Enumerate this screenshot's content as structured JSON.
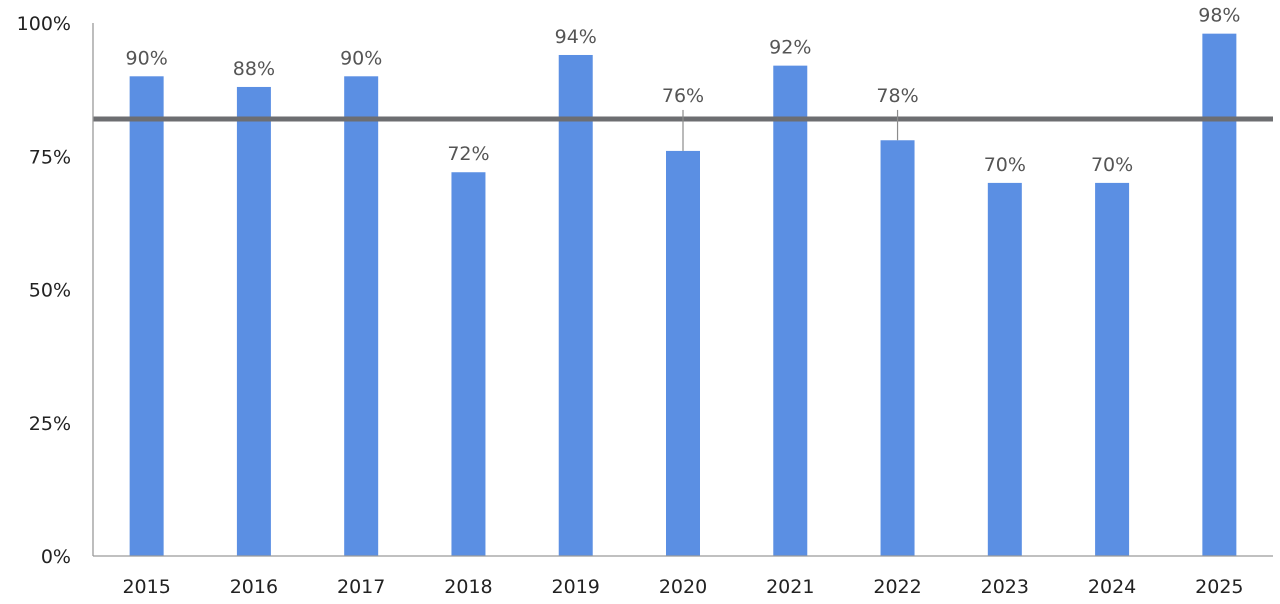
{
  "chart_data": {
    "type": "bar",
    "categories": [
      "2015",
      "2016",
      "2017",
      "2018",
      "2019",
      "2020",
      "2021",
      "2022",
      "2023",
      "2024",
      "2025"
    ],
    "values": [
      90,
      88,
      90,
      72,
      94,
      76,
      92,
      78,
      70,
      70,
      98
    ],
    "value_labels": [
      "90%",
      "88%",
      "90%",
      "72%",
      "94%",
      "76%",
      "92%",
      "78%",
      "70%",
      "70%",
      "98%"
    ],
    "yticks": [
      0,
      25,
      50,
      75,
      100
    ],
    "ytick_labels": [
      "0%",
      "25%",
      "50%",
      "75%",
      "100%"
    ],
    "ylim": [
      0,
      100
    ],
    "reference_line": 82,
    "grid": false,
    "legend": "none",
    "title": "",
    "xlabel": "",
    "ylabel": "",
    "colors": {
      "bar": "#5b8fe3",
      "reference_line": "#6d6e71",
      "axis": "#9a9a9a",
      "leader": "#8c8c8c"
    }
  }
}
